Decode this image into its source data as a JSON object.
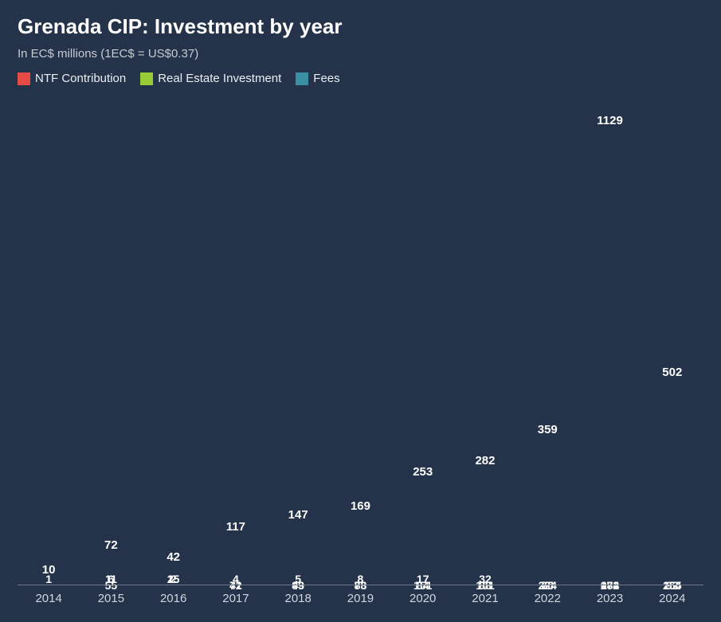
{
  "title": "Grenada CIP: Investment by year",
  "subtitle": "In EC$ millions (1EC$ = US$0.37)",
  "background_color": "#24334a",
  "text_color": "#eaeef2",
  "axis_color": "#6e7a8a",
  "title_fontsize": 26,
  "subtitle_fontsize": 15,
  "label_fontsize": 15,
  "seg_label_fontsize": 14,
  "legend": [
    {
      "label": "NTF Contribution",
      "color": "#e84b45"
    },
    {
      "label": "Real Estate Investment",
      "color": "#98cc37"
    },
    {
      "label": "Fees",
      "color": "#3b8fa5"
    }
  ],
  "chart": {
    "type": "stacked-bar",
    "y_max": 1200,
    "bar_width_pct": 80,
    "categories": [
      "2014",
      "2015",
      "2016",
      "2017",
      "2018",
      "2019",
      "2020",
      "2021",
      "2022",
      "2023",
      "2024"
    ],
    "series_order": [
      "ntf",
      "real_estate",
      "fees"
    ],
    "series_colors": {
      "ntf": "#e84b45",
      "real_estate": "#98cc37",
      "fees": "#3b8fa5"
    },
    "data": [
      {
        "year": "2014",
        "ntf": 1,
        "real_estate": 9,
        "fees": 0,
        "total": 10,
        "labels": {
          "ntf": "1",
          "real_estate": null,
          "fees": null
        }
      },
      {
        "year": "2015",
        "ntf": 11,
        "real_estate": 55,
        "fees": 6,
        "total": 72,
        "labels": {
          "ntf": "11",
          "real_estate": "55",
          "fees": "6"
        }
      },
      {
        "year": "2016",
        "ntf": 15,
        "real_estate": 25,
        "fees": 2,
        "total": 42,
        "labels": {
          "ntf": "15",
          "real_estate": "25",
          "fees": "2"
        }
      },
      {
        "year": "2017",
        "ntf": 72,
        "real_estate": 41,
        "fees": 4,
        "total": 117,
        "labels": {
          "ntf": "72",
          "real_estate": "41",
          "fees": "4"
        }
      },
      {
        "year": "2018",
        "ntf": 93,
        "real_estate": 49,
        "fees": 5,
        "total": 147,
        "labels": {
          "ntf": "93",
          "real_estate": "49",
          "fees": "5"
        }
      },
      {
        "year": "2019",
        "ntf": 88,
        "real_estate": 73,
        "fees": 8,
        "total": 169,
        "labels": {
          "ntf": "88",
          "real_estate": "73",
          "fees": "8"
        }
      },
      {
        "year": "2020",
        "ntf": 84,
        "real_estate": 151,
        "fees": 17,
        "total": 253,
        "labels": {
          "ntf": "84",
          "real_estate": "151",
          "fees": "17"
        }
      },
      {
        "year": "2021",
        "ntf": 88,
        "real_estate": 161,
        "fees": 32,
        "total": 282,
        "labels": {
          "ntf": "88",
          "real_estate": "161",
          "fees": "32"
        }
      },
      {
        "year": "2022",
        "ntf": 65,
        "real_estate": 224,
        "fees": 70,
        "total": 359,
        "labels": {
          "ntf": "65",
          "real_estate": "224",
          "fees": "70"
        }
      },
      {
        "year": "2023",
        "ntf": 274,
        "real_estate": 672,
        "fees": 183,
        "total": 1129,
        "labels": {
          "ntf": "274",
          "real_estate": "672",
          "fees": "183"
        }
      },
      {
        "year": "2024",
        "ntf": 155,
        "real_estate": 254,
        "fees": 92,
        "total": 502,
        "labels": {
          "ntf": "155",
          "real_estate": "254",
          "fees": "92"
        }
      }
    ]
  }
}
